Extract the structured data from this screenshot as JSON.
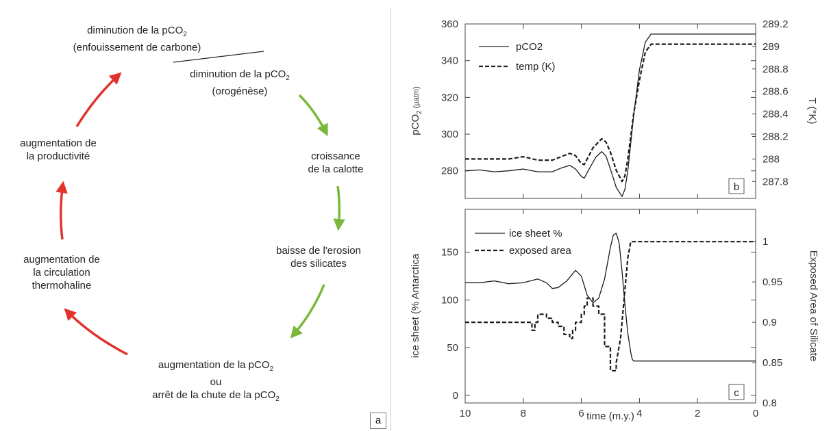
{
  "diagram": {
    "badge": "a",
    "nodes": [
      {
        "id": "top-left",
        "lines": [
          {
            "pre": "diminution de la pCO",
            "sub": "2"
          },
          {
            "pre": "(enfouissement de carbone)"
          }
        ]
      },
      {
        "id": "top-right",
        "lines": [
          {
            "pre": "diminution de la pCO",
            "sub": "2"
          },
          {
            "pre": "(orogénèse)"
          }
        ]
      },
      {
        "id": "right-1",
        "lines": [
          {
            "pre": "croissance"
          },
          {
            "pre": "de la calotte"
          }
        ]
      },
      {
        "id": "right-2",
        "lines": [
          {
            "pre": "baisse de l'erosion"
          },
          {
            "pre": "des silicates"
          }
        ]
      },
      {
        "id": "bottom",
        "lines": [
          {
            "pre": "augmentation de la pCO",
            "sub": "2"
          },
          {
            "pre": "ou"
          },
          {
            "pre": "arrêt de la chute de la pCO",
            "sub": "2"
          }
        ]
      },
      {
        "id": "left-1",
        "lines": [
          {
            "pre": "augmentation de"
          },
          {
            "pre": "la circulation"
          },
          {
            "pre": "thermohaline"
          }
        ]
      },
      {
        "id": "left-2",
        "lines": [
          {
            "pre": "augmentation de"
          },
          {
            "pre": "la productivité"
          }
        ]
      }
    ],
    "colors": {
      "green_arrow": "#7ab83a",
      "red_arrow": "#e2322d"
    }
  },
  "chart_data": [
    {
      "type": "line",
      "badge": "b",
      "xlim": [
        10,
        0
      ],
      "ylabel": {
        "pre": "pCO",
        "sub": "2",
        "post": " (µatm)"
      },
      "ylim": [
        265,
        360
      ],
      "yticks": [
        280,
        300,
        320,
        340,
        360
      ],
      "y2label": "T (°K)",
      "y2lim": [
        287.65,
        289.2
      ],
      "y2ticks": [
        "287.8",
        "288",
        "288.2",
        "288.4",
        "288.6",
        "288.8",
        "289",
        "289.2"
      ],
      "series": [
        {
          "name": "pCO2",
          "axis": "left",
          "style": "solid",
          "x": [
            10,
            9.5,
            9,
            8.5,
            8,
            7.5,
            7,
            6.7,
            6.4,
            6.2,
            6.0,
            5.9,
            5.75,
            5.5,
            5.3,
            5.15,
            5.0,
            4.8,
            4.6,
            4.5,
            4.4,
            4.3,
            4.2,
            4.0,
            3.8,
            3.6,
            3.5,
            0
          ],
          "values": [
            280,
            280.5,
            279.5,
            280,
            281,
            279.5,
            279.5,
            281.5,
            283,
            281,
            277,
            276,
            280.5,
            287.5,
            290.5,
            288,
            281,
            271,
            266,
            270,
            280,
            295,
            310,
            335,
            350,
            354.5,
            354.5,
            354.5
          ]
        },
        {
          "name": "temp (K)",
          "axis": "right",
          "style": "dashed",
          "x": [
            10,
            9,
            8.5,
            8,
            7.5,
            7,
            6.7,
            6.4,
            6.2,
            6.0,
            5.9,
            5.8,
            5.6,
            5.3,
            5.15,
            5.0,
            4.8,
            4.6,
            4.5,
            4.4,
            4.3,
            4.2,
            4.0,
            3.8,
            3.6,
            3.5,
            0
          ],
          "values": [
            288.0,
            288.0,
            288.0,
            288.02,
            287.99,
            287.99,
            288.02,
            288.05,
            288.03,
            287.96,
            287.95,
            288.0,
            288.1,
            288.18,
            288.15,
            288.06,
            287.9,
            287.8,
            287.85,
            288.0,
            288.2,
            288.4,
            288.7,
            288.95,
            289.02,
            289.02,
            289.02
          ]
        }
      ]
    },
    {
      "type": "line",
      "badge": "c",
      "xlabel": "time (m.y.)",
      "xlim": [
        10,
        0
      ],
      "xticks": [
        10,
        8,
        6,
        4,
        2,
        0
      ],
      "ylabel": "ice sheet (% Antarctica",
      "ylim": [
        -8,
        195
      ],
      "yticks": [
        0,
        50,
        100,
        150
      ],
      "y2label": "Exposed Area of Silicate",
      "y2lim": [
        0.8,
        1.04
      ],
      "y2ticks": [
        "0.8",
        "0.85",
        "0.9",
        "0.95",
        "1"
      ],
      "series": [
        {
          "name": "ice sheet %",
          "axis": "left",
          "style": "solid",
          "x": [
            10,
            9.5,
            9,
            8.5,
            8,
            7.5,
            7.2,
            7.0,
            6.8,
            6.5,
            6.2,
            6.0,
            5.8,
            5.6,
            5.4,
            5.2,
            5.0,
            4.9,
            4.8,
            4.7,
            4.6,
            4.5,
            4.4,
            4.3,
            4.25,
            4.2,
            0
          ],
          "values": [
            118,
            118,
            120,
            117,
            118,
            122,
            118,
            112,
            113,
            120,
            131,
            125,
            105,
            97,
            102,
            122,
            155,
            168,
            170,
            160,
            130,
            95,
            65,
            45,
            38,
            36,
            36
          ]
        },
        {
          "name": "exposed area",
          "axis": "right",
          "style": "dashed",
          "x": [
            10,
            7.7,
            7.7,
            7.6,
            7.6,
            7.5,
            7.5,
            7.2,
            7.2,
            7.0,
            7.0,
            6.8,
            6.8,
            6.6,
            6.6,
            6.4,
            6.4,
            6.3,
            6.3,
            6.2,
            6.2,
            6.0,
            6.0,
            5.9,
            5.9,
            5.8,
            5.8,
            5.6,
            5.6,
            5.4,
            5.4,
            5.2,
            5.2,
            5.0,
            5.0,
            4.8,
            4.8,
            4.65,
            4.5,
            4.4,
            4.35,
            4.3,
            4.3,
            0
          ],
          "values": [
            0.9,
            0.9,
            0.89,
            0.89,
            0.9,
            0.9,
            0.91,
            0.91,
            0.905,
            0.905,
            0.9,
            0.9,
            0.895,
            0.895,
            0.885,
            0.885,
            0.88,
            0.88,
            0.89,
            0.89,
            0.9,
            0.9,
            0.91,
            0.91,
            0.92,
            0.92,
            0.93,
            0.93,
            0.92,
            0.92,
            0.91,
            0.91,
            0.87,
            0.87,
            0.84,
            0.84,
            0.85,
            0.88,
            0.94,
            0.98,
            0.99,
            1.0,
            1.0,
            1.0
          ]
        }
      ]
    }
  ]
}
